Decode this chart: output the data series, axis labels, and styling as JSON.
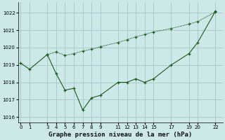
{
  "title": "Graphe pression niveau de la mer (hPa)",
  "background_color": "#cce8e8",
  "grid_color": "#aacccc",
  "line_color": "#1a5c1a",
  "x_ticks": [
    0,
    1,
    3,
    4,
    5,
    6,
    7,
    8,
    9,
    11,
    12,
    13,
    14,
    15,
    17,
    19,
    20,
    22
  ],
  "series1_x": [
    0,
    1,
    3,
    4,
    5,
    6,
    7,
    8,
    9,
    11,
    12,
    13,
    14,
    15,
    17,
    19,
    20,
    22
  ],
  "series1_y": [
    1019.1,
    1018.75,
    1019.6,
    1018.5,
    1017.55,
    1017.65,
    1016.4,
    1017.1,
    1017.25,
    1018.0,
    1018.0,
    1018.2,
    1018.0,
    1018.2,
    1019.0,
    1019.65,
    1020.3,
    1022.1
  ],
  "series2_x": [
    3,
    4,
    5,
    6,
    7,
    8,
    9,
    11,
    12,
    13,
    14,
    15,
    17,
    19,
    20,
    22
  ],
  "series2_y": [
    1019.6,
    1019.75,
    1019.55,
    1019.65,
    1019.8,
    1019.9,
    1020.05,
    1020.3,
    1020.45,
    1020.62,
    1020.75,
    1020.9,
    1021.1,
    1021.35,
    1021.5,
    1022.05
  ],
  "ylim": [
    1015.7,
    1022.6
  ],
  "xlim": [
    -0.3,
    22.8
  ],
  "yticks": [
    1016,
    1017,
    1018,
    1019,
    1020,
    1021,
    1022
  ],
  "title_fontsize": 6.5,
  "tick_fontsize": 5.0
}
